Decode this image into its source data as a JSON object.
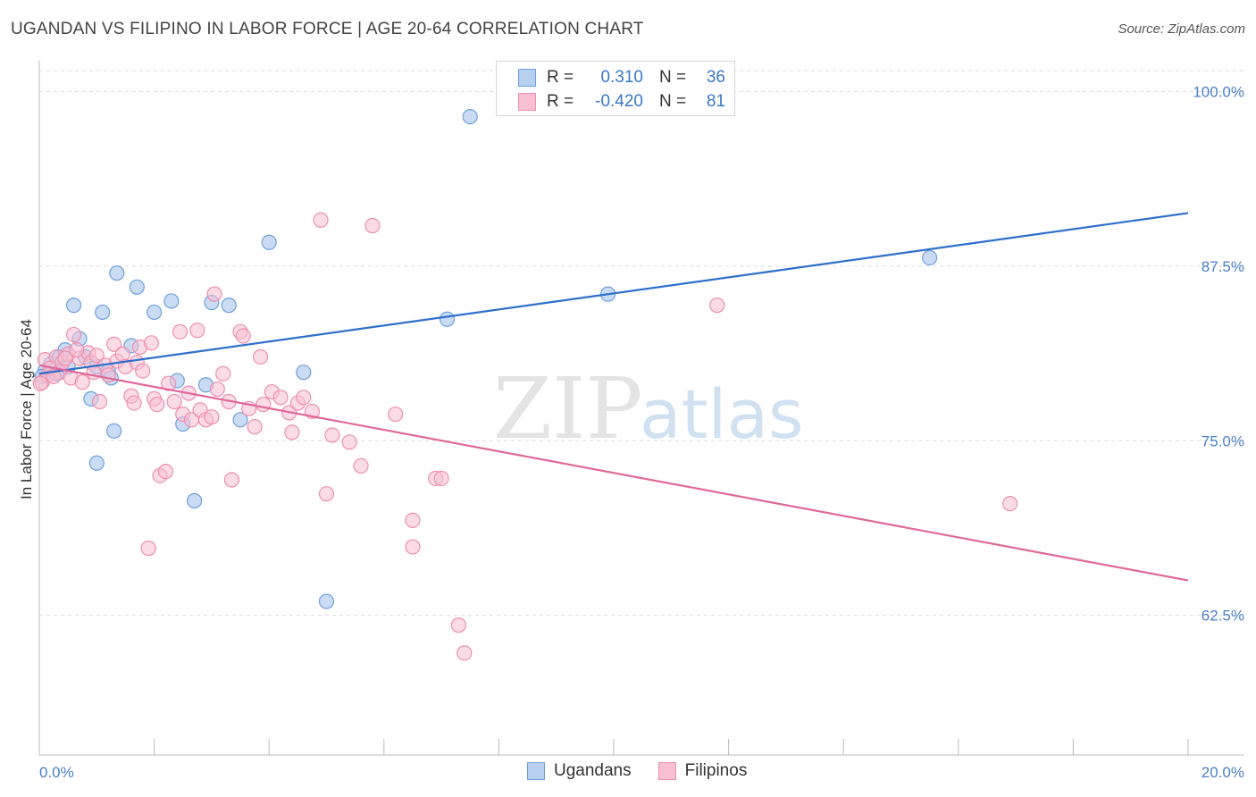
{
  "title": "UGANDAN VS FILIPINO IN LABOR FORCE | AGE 20-64 CORRELATION CHART",
  "source": "Source: ZipAtlas.com",
  "watermark": {
    "zip": "ZIP",
    "atlas": "atlas"
  },
  "legend": {
    "rows": [
      {
        "r_label": "R =",
        "r_value": "0.310",
        "n_label": "N =",
        "n_value": "36"
      },
      {
        "r_label": "R =",
        "r_value": "-0.420",
        "n_label": "N =",
        "n_value": "81"
      }
    ]
  },
  "bottom_legend": {
    "ugandans": "Ugandans",
    "filipinos": "Filipinos"
  },
  "colors": {
    "ugandan_fill": "#b8d0f0",
    "ugandan_stroke": "#6f9fdc",
    "ugandan_line": "#2e6fcc",
    "filipino_fill": "#f8c0d2",
    "filipino_stroke": "#ee8fb0",
    "filipino_line": "#e0689a",
    "tick_label": "#4a7fc9"
  },
  "chart_data": {
    "type": "scatter",
    "title": "UGANDAN VS FILIPINO IN LABOR FORCE | AGE 20-64 CORRELATION CHART",
    "xlabel": "",
    "ylabel": "In Labor Force | Age 20-64",
    "xlim": [
      0,
      20
    ],
    "ylim": [
      52.5,
      101.5
    ],
    "x_tick_labels": [
      {
        "value": 0,
        "label": "0.0%"
      },
      {
        "value": 20,
        "label": "20.0%"
      }
    ],
    "y_tick_labels": [
      {
        "value": 100,
        "label": "100.0%"
      },
      {
        "value": 87.5,
        "label": "87.5%"
      },
      {
        "value": 75,
        "label": "75.0%"
      },
      {
        "value": 62.5,
        "label": "62.5%"
      }
    ],
    "series": [
      {
        "name": "Ugandans",
        "R": 0.31,
        "N": 36,
        "trendline": {
          "x": [
            0,
            20
          ],
          "y": [
            79.8,
            91.3
          ]
        },
        "points": [
          {
            "x": 0.1,
            "y": 80.0
          },
          {
            "x": 0.2,
            "y": 80.5
          },
          {
            "x": 0.3,
            "y": 79.8
          },
          {
            "x": 0.35,
            "y": 81.0
          },
          {
            "x": 0.5,
            "y": 80.3
          },
          {
            "x": 0.45,
            "y": 81.5
          },
          {
            "x": 0.7,
            "y": 82.3
          },
          {
            "x": 0.6,
            "y": 84.7
          },
          {
            "x": 0.8,
            "y": 81.0
          },
          {
            "x": 0.9,
            "y": 78.0
          },
          {
            "x": 1.0,
            "y": 73.4
          },
          {
            "x": 1.0,
            "y": 80.3
          },
          {
            "x": 1.1,
            "y": 84.2
          },
          {
            "x": 1.2,
            "y": 80.0
          },
          {
            "x": 1.25,
            "y": 79.5
          },
          {
            "x": 1.3,
            "y": 75.7
          },
          {
            "x": 1.35,
            "y": 87.0
          },
          {
            "x": 1.6,
            "y": 81.8
          },
          {
            "x": 1.7,
            "y": 86.0
          },
          {
            "x": 2.0,
            "y": 84.2
          },
          {
            "x": 2.3,
            "y": 85.0
          },
          {
            "x": 2.4,
            "y": 79.3
          },
          {
            "x": 2.5,
            "y": 76.2
          },
          {
            "x": 2.7,
            "y": 70.7
          },
          {
            "x": 2.9,
            "y": 79.0
          },
          {
            "x": 3.0,
            "y": 84.9
          },
          {
            "x": 3.3,
            "y": 84.7
          },
          {
            "x": 3.5,
            "y": 76.5
          },
          {
            "x": 4.0,
            "y": 89.2
          },
          {
            "x": 4.6,
            "y": 79.9
          },
          {
            "x": 5.0,
            "y": 63.5
          },
          {
            "x": 7.1,
            "y": 83.7
          },
          {
            "x": 7.5,
            "y": 98.2
          },
          {
            "x": 9.9,
            "y": 85.5
          },
          {
            "x": 15.5,
            "y": 88.1
          },
          {
            "x": 0.05,
            "y": 79.6
          }
        ]
      },
      {
        "name": "Filipinos",
        "R": -0.42,
        "N": 81,
        "trendline": {
          "x": [
            0,
            20
          ],
          "y": [
            80.4,
            65.0
          ]
        },
        "points": [
          {
            "x": 0.05,
            "y": 79.2
          },
          {
            "x": 0.1,
            "y": 80.8
          },
          {
            "x": 0.15,
            "y": 79.7
          },
          {
            "x": 0.2,
            "y": 80.2
          },
          {
            "x": 0.3,
            "y": 81.0
          },
          {
            "x": 0.35,
            "y": 79.9
          },
          {
            "x": 0.4,
            "y": 80.6
          },
          {
            "x": 0.5,
            "y": 81.2
          },
          {
            "x": 0.55,
            "y": 79.5
          },
          {
            "x": 0.6,
            "y": 82.6
          },
          {
            "x": 0.7,
            "y": 80.9
          },
          {
            "x": 0.75,
            "y": 79.2
          },
          {
            "x": 0.85,
            "y": 81.3
          },
          {
            "x": 0.9,
            "y": 80.6
          },
          {
            "x": 1.0,
            "y": 81.1
          },
          {
            "x": 1.05,
            "y": 77.8
          },
          {
            "x": 1.15,
            "y": 80.4
          },
          {
            "x": 1.2,
            "y": 79.7
          },
          {
            "x": 1.3,
            "y": 81.9
          },
          {
            "x": 1.35,
            "y": 80.7
          },
          {
            "x": 1.45,
            "y": 81.2
          },
          {
            "x": 1.5,
            "y": 80.3
          },
          {
            "x": 1.6,
            "y": 78.2
          },
          {
            "x": 1.65,
            "y": 77.7
          },
          {
            "x": 1.7,
            "y": 80.6
          },
          {
            "x": 1.75,
            "y": 81.7
          },
          {
            "x": 1.8,
            "y": 80.0
          },
          {
            "x": 1.9,
            "y": 67.3
          },
          {
            "x": 1.95,
            "y": 82.0
          },
          {
            "x": 2.0,
            "y": 78.0
          },
          {
            "x": 2.05,
            "y": 77.6
          },
          {
            "x": 2.1,
            "y": 72.5
          },
          {
            "x": 2.2,
            "y": 72.8
          },
          {
            "x": 2.25,
            "y": 79.1
          },
          {
            "x": 2.35,
            "y": 77.8
          },
          {
            "x": 2.45,
            "y": 82.8
          },
          {
            "x": 2.5,
            "y": 76.9
          },
          {
            "x": 2.6,
            "y": 78.4
          },
          {
            "x": 2.65,
            "y": 76.5
          },
          {
            "x": 2.75,
            "y": 82.9
          },
          {
            "x": 2.8,
            "y": 77.2
          },
          {
            "x": 2.9,
            "y": 76.5
          },
          {
            "x": 3.0,
            "y": 76.7
          },
          {
            "x": 3.05,
            "y": 85.5
          },
          {
            "x": 3.1,
            "y": 78.7
          },
          {
            "x": 3.2,
            "y": 79.8
          },
          {
            "x": 3.3,
            "y": 77.8
          },
          {
            "x": 3.35,
            "y": 72.2
          },
          {
            "x": 3.5,
            "y": 82.8
          },
          {
            "x": 3.55,
            "y": 82.5
          },
          {
            "x": 3.65,
            "y": 77.3
          },
          {
            "x": 3.75,
            "y": 76.0
          },
          {
            "x": 3.85,
            "y": 81.0
          },
          {
            "x": 3.9,
            "y": 77.6
          },
          {
            "x": 4.05,
            "y": 78.5
          },
          {
            "x": 4.2,
            "y": 78.1
          },
          {
            "x": 4.35,
            "y": 77.0
          },
          {
            "x": 4.4,
            "y": 75.6
          },
          {
            "x": 4.5,
            "y": 77.7
          },
          {
            "x": 4.6,
            "y": 78.1
          },
          {
            "x": 4.75,
            "y": 77.1
          },
          {
            "x": 4.9,
            "y": 90.8
          },
          {
            "x": 5.0,
            "y": 71.2
          },
          {
            "x": 5.1,
            "y": 75.4
          },
          {
            "x": 5.4,
            "y": 74.9
          },
          {
            "x": 5.6,
            "y": 73.2
          },
          {
            "x": 5.8,
            "y": 90.4
          },
          {
            "x": 6.2,
            "y": 76.9
          },
          {
            "x": 6.5,
            "y": 69.3
          },
          {
            "x": 6.5,
            "y": 67.4
          },
          {
            "x": 6.9,
            "y": 72.3
          },
          {
            "x": 7.0,
            "y": 72.3
          },
          {
            "x": 7.3,
            "y": 61.8
          },
          {
            "x": 7.4,
            "y": 59.8
          },
          {
            "x": 11.8,
            "y": 84.7
          },
          {
            "x": 16.9,
            "y": 70.5
          },
          {
            "x": 0.25,
            "y": 79.6
          },
          {
            "x": 0.45,
            "y": 80.9
          },
          {
            "x": 0.65,
            "y": 81.5
          },
          {
            "x": 0.95,
            "y": 79.9
          },
          {
            "x": 0.02,
            "y": 79.1
          }
        ]
      }
    ]
  }
}
